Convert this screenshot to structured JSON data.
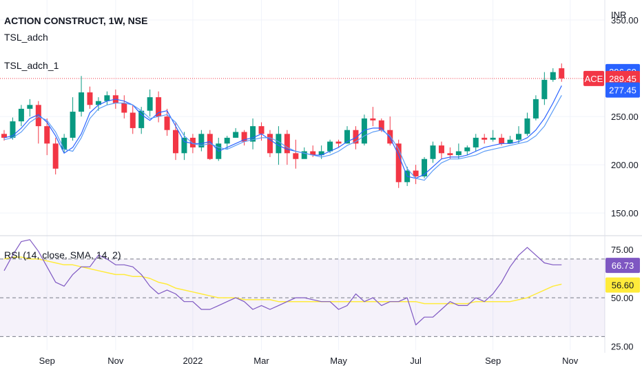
{
  "header": {
    "title": "ACTION CONSTRUCT, 1W, NSE",
    "indicator_1": "TSL_adch",
    "indicator_2": "TSL_adch_1"
  },
  "chart_data": [
    {
      "type": "candlestick",
      "currency_label": "INR",
      "y_ticks": [
        "150.00",
        "200.00",
        "250.00",
        "350.00"
      ],
      "ylim": [
        128,
        360
      ],
      "x_labels": [
        "Sep",
        "Nov",
        "2022",
        "Mar",
        "May",
        "Jul",
        "Sep",
        "Nov"
      ],
      "x_label_index": [
        5,
        13,
        22,
        30,
        39,
        48,
        57,
        66
      ],
      "candles": [
        [
          232,
          228,
          236,
          225
        ],
        [
          228,
          245,
          249,
          226
        ],
        [
          245,
          258,
          262,
          240
        ],
        [
          258,
          262,
          268,
          250
        ],
        [
          262,
          240,
          266,
          222
        ],
        [
          240,
          222,
          248,
          210
        ],
        [
          222,
          196,
          228,
          190
        ],
        [
          216,
          228,
          232,
          212
        ],
        [
          228,
          255,
          270,
          225
        ],
        [
          255,
          275,
          292,
          250
        ],
        [
          275,
          262,
          281,
          258
        ],
        [
          262,
          266,
          270,
          256
        ],
        [
          266,
          272,
          276,
          262
        ],
        [
          272,
          264,
          278,
          258
        ],
        [
          264,
          254,
          272,
          248
        ],
        [
          254,
          238,
          262,
          232
        ],
        [
          238,
          256,
          260,
          232
        ],
        [
          256,
          270,
          278,
          250
        ],
        [
          270,
          250,
          276,
          244
        ],
        [
          250,
          236,
          258,
          230
        ],
        [
          236,
          212,
          244,
          205
        ],
        [
          212,
          228,
          234,
          205
        ],
        [
          228,
          218,
          232,
          212
        ],
        [
          218,
          232,
          236,
          214
        ],
        [
          232,
          206,
          236,
          205
        ],
        [
          206,
          222,
          228,
          204
        ],
        [
          222,
          228,
          230,
          216
        ],
        [
          228,
          234,
          238,
          228
        ],
        [
          234,
          224,
          236,
          220
        ],
        [
          224,
          240,
          248,
          216
        ],
        [
          240,
          232,
          244,
          225
        ],
        [
          232,
          212,
          236,
          208
        ],
        [
          212,
          232,
          240,
          200
        ],
        [
          232,
          212,
          236,
          200
        ],
        [
          212,
          206,
          226,
          196
        ],
        [
          206,
          214,
          218,
          210
        ],
        [
          214,
          210,
          220,
          208
        ],
        [
          210,
          214,
          220,
          206
        ],
        [
          214,
          224,
          226,
          212
        ],
        [
          224,
          222,
          226,
          218
        ],
        [
          222,
          236,
          240,
          222
        ],
        [
          236,
          222,
          240,
          216
        ],
        [
          222,
          248,
          252,
          220
        ],
        [
          248,
          246,
          260,
          240
        ],
        [
          246,
          236,
          248,
          234
        ],
        [
          236,
          222,
          250,
          220
        ],
        [
          222,
          182,
          226,
          176
        ],
        [
          182,
          194,
          198,
          178
        ],
        [
          194,
          188,
          200,
          180
        ],
        [
          188,
          206,
          208,
          186
        ],
        [
          206,
          220,
          224,
          202
        ],
        [
          220,
          212,
          224,
          206
        ],
        [
          212,
          210,
          218,
          206
        ],
        [
          210,
          214,
          222,
          206
        ],
        [
          214,
          218,
          220,
          210
        ],
        [
          218,
          228,
          232,
          214
        ],
        [
          228,
          226,
          232,
          222
        ],
        [
          226,
          228,
          236,
          224
        ],
        [
          228,
          222,
          232,
          220
        ],
        [
          222,
          226,
          230,
          222
        ],
        [
          226,
          232,
          240,
          222
        ],
        [
          232,
          248,
          254,
          230
        ],
        [
          248,
          268,
          272,
          246
        ],
        [
          268,
          288,
          296,
          262
        ],
        [
          288,
          296,
          300,
          286
        ],
        [
          300,
          289.45,
          305,
          286
        ]
      ],
      "tsl_line": [
        228,
        230,
        238,
        248,
        252,
        244,
        230,
        212,
        218,
        232,
        254,
        262,
        266,
        268,
        266,
        262,
        252,
        246,
        254,
        256,
        240,
        224,
        222,
        222,
        224,
        214,
        218,
        222,
        226,
        228,
        232,
        226,
        220,
        216,
        214,
        212,
        210,
        210,
        214,
        218,
        224,
        228,
        236,
        238,
        238,
        228,
        210,
        188,
        186,
        190,
        198,
        206,
        208,
        208,
        210,
        214,
        218,
        220,
        222,
        222,
        224,
        228,
        236,
        248,
        264,
        282
      ],
      "tsl_line_1": [
        226,
        228,
        234,
        244,
        250,
        246,
        234,
        216,
        214,
        228,
        248,
        258,
        262,
        264,
        264,
        262,
        256,
        248,
        250,
        252,
        244,
        230,
        222,
        220,
        222,
        218,
        216,
        220,
        224,
        226,
        228,
        228,
        224,
        218,
        214,
        212,
        210,
        208,
        210,
        214,
        220,
        224,
        230,
        234,
        236,
        230,
        216,
        196,
        186,
        184,
        194,
        202,
        206,
        206,
        208,
        210,
        214,
        216,
        218,
        220,
        222,
        224,
        230,
        240,
        256,
        272
      ],
      "price_labels": [
        {
          "text": "296.60",
          "value": 296.6,
          "color": "#2962ff"
        },
        {
          "text": "289.45",
          "value": 289.45,
          "color": "#f23645"
        },
        {
          "text": "277.45",
          "value": 277.45,
          "color": "#2962ff"
        }
      ],
      "symbol_badge": "ACE",
      "last_price": 289.45
    },
    {
      "type": "line",
      "title": "RSI (14, close, SMA, 14, 2)",
      "y_ticks": [
        "25.00",
        "50.00",
        "75.00"
      ],
      "ylim": [
        23,
        81
      ],
      "bands": [
        30,
        50,
        70
      ],
      "series": [
        {
          "name": "RSI",
          "color": "#7e57c2",
          "values": [
            64,
            72,
            79,
            80,
            74,
            66,
            58,
            56,
            62,
            66,
            66,
            72,
            70,
            67,
            67,
            66,
            62,
            56,
            52,
            54,
            52,
            48,
            48,
            44,
            44,
            46,
            48,
            50,
            48,
            44,
            46,
            44,
            46,
            48,
            50,
            50,
            49,
            48,
            48,
            44,
            46,
            52,
            48,
            50,
            46,
            48,
            48,
            50,
            36,
            40,
            40,
            44,
            48,
            46,
            46,
            50,
            48,
            52,
            58,
            66,
            72,
            76,
            72,
            68,
            67,
            67
          ]
        },
        {
          "name": "SMA",
          "color": "#ffeb3b",
          "values": [
            70,
            71,
            71,
            70,
            70,
            69,
            68,
            67,
            67,
            66,
            65,
            64,
            63,
            62,
            62,
            61,
            61,
            60,
            58,
            57,
            55,
            54,
            53,
            52,
            51,
            50,
            50,
            50,
            49,
            49,
            49,
            49,
            48,
            48,
            48,
            48,
            48,
            48,
            48,
            48,
            48,
            48,
            48,
            48,
            48,
            48,
            48,
            48,
            48,
            47,
            47,
            47,
            47,
            47,
            47,
            48,
            48,
            48,
            48,
            48,
            49,
            50,
            52,
            54,
            56,
            57
          ]
        }
      ],
      "value_labels": [
        {
          "text": "66.73",
          "value": 66.73,
          "color": "#7e57c2"
        },
        {
          "text": "56.60",
          "value": 56.6,
          "color": "#ffeb3b"
        }
      ]
    }
  ]
}
